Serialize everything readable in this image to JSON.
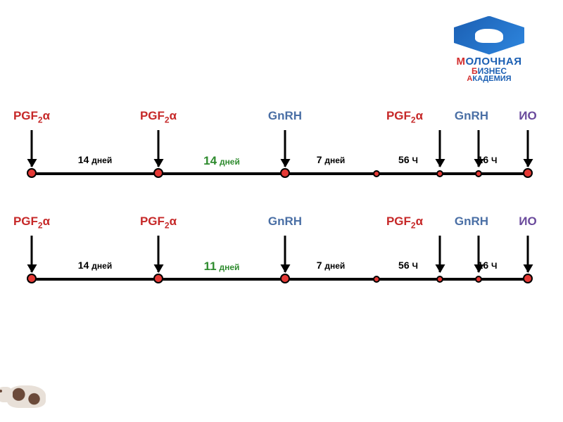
{
  "logo": {
    "line1_first": "М",
    "line1_rest": "ОЛОЧНАЯ",
    "line2_first": "Б",
    "line2_rest": "ИЗНЕС",
    "line3_first": "А",
    "line3_rest": "КАДЕМИЯ",
    "shape_color": "#1b5fb3",
    "accent_color": "#d32f2f"
  },
  "colors": {
    "pgf": "#c62828",
    "gnrh": "#4a6fa5",
    "io": "#6a4a9c",
    "green": "#2e8b2e",
    "black": "#000000",
    "node_fill": "#e53935",
    "node_fill_alt": "#c62828"
  },
  "timeline_geom": {
    "axis_start": 10,
    "axis_end": 720,
    "positions": [
      10,
      190,
      370,
      500,
      590,
      645,
      715
    ]
  },
  "timelines": [
    {
      "id": "t1",
      "events": [
        {
          "label_html": "PGF<sub>2</sub>α",
          "color_key": "pgf",
          "arrow": true,
          "node": true
        },
        {
          "label_html": "PGF<sub>2</sub>α",
          "color_key": "pgf",
          "arrow": true,
          "node": true
        },
        {
          "label_html": "GnRH",
          "color_key": "gnrh",
          "arrow": true,
          "node": true
        },
        {
          "label_html": "",
          "arrow": false,
          "node": true,
          "small": true
        },
        {
          "label_html": "PGF<sub>2</sub>α",
          "color_key": "pgf",
          "arrow": true,
          "node": true,
          "small": true,
          "label_shift": -50
        },
        {
          "label_html": "GnRH",
          "color_key": "gnrh",
          "arrow": true,
          "node": true,
          "small": true,
          "label_shift": -10
        },
        {
          "label_html": "ИО",
          "color_key": "io",
          "arrow": true,
          "node": true
        }
      ],
      "intervals": [
        {
          "between": [
            0,
            1
          ],
          "text": "14",
          "unit": "дней",
          "color_key": "black"
        },
        {
          "between": [
            1,
            2
          ],
          "text": "14",
          "unit": "дней",
          "color_key": "green",
          "big": true
        },
        {
          "between": [
            2,
            3
          ],
          "text": "7",
          "unit": "дней",
          "color_key": "black"
        },
        {
          "between": [
            3,
            4
          ],
          "text": "56",
          "unit": "Ч",
          "color_key": "black"
        },
        {
          "between": [
            4,
            5
          ],
          "text": "16",
          "unit": "Ч",
          "color_key": "black",
          "shift": 40
        }
      ]
    },
    {
      "id": "t2",
      "events": [
        {
          "label_html": "PGF<sub>2</sub>α",
          "color_key": "pgf",
          "arrow": true,
          "node": true
        },
        {
          "label_html": "PGF<sub>2</sub>α",
          "color_key": "pgf",
          "arrow": true,
          "node": true
        },
        {
          "label_html": "GnRH",
          "color_key": "gnrh",
          "arrow": true,
          "node": true
        },
        {
          "label_html": "",
          "arrow": false,
          "node": true,
          "small": true
        },
        {
          "label_html": "PGF<sub>2</sub>α",
          "color_key": "pgf",
          "arrow": true,
          "node": true,
          "small": true,
          "label_shift": -50
        },
        {
          "label_html": "GnRH",
          "color_key": "gnrh",
          "arrow": true,
          "node": true,
          "small": true,
          "label_shift": -10
        },
        {
          "label_html": "ИО",
          "color_key": "io",
          "arrow": true,
          "node": true
        }
      ],
      "intervals": [
        {
          "between": [
            0,
            1
          ],
          "text": "14",
          "unit": "дней",
          "color_key": "black"
        },
        {
          "between": [
            1,
            2
          ],
          "text": "11",
          "unit": "дней",
          "color_key": "green",
          "big": true
        },
        {
          "between": [
            2,
            3
          ],
          "text": "7",
          "unit": "дней",
          "color_key": "black"
        },
        {
          "between": [
            3,
            4
          ],
          "text": "56",
          "unit": "Ч",
          "color_key": "black"
        },
        {
          "between": [
            4,
            5
          ],
          "text": "16",
          "unit": "Ч",
          "color_key": "black",
          "shift": 40
        }
      ]
    }
  ]
}
